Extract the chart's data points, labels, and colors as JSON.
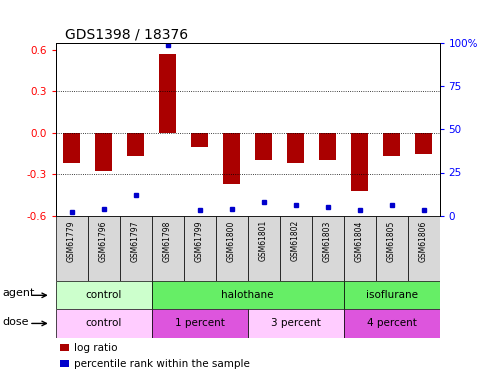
{
  "title": "GDS1398 / 18376",
  "samples": [
    "GSM61779",
    "GSM61796",
    "GSM61797",
    "GSM61798",
    "GSM61799",
    "GSM61800",
    "GSM61801",
    "GSM61802",
    "GSM61803",
    "GSM61804",
    "GSM61805",
    "GSM61806"
  ],
  "log_ratios": [
    -0.22,
    -0.28,
    -0.17,
    0.57,
    -0.1,
    -0.37,
    -0.2,
    -0.22,
    -0.2,
    -0.42,
    -0.17,
    -0.15
  ],
  "percentile_ranks": [
    2,
    4,
    12,
    99,
    3,
    4,
    8,
    6,
    5,
    3,
    6,
    3
  ],
  "bar_color": "#aa0000",
  "dot_color": "#0000cc",
  "agent_groups": [
    {
      "label": "control",
      "start": 0,
      "end": 3,
      "color": "#ccffcc"
    },
    {
      "label": "halothane",
      "start": 3,
      "end": 9,
      "color": "#66ee66"
    },
    {
      "label": "isoflurane",
      "start": 9,
      "end": 12,
      "color": "#66ee66"
    }
  ],
  "dose_groups": [
    {
      "label": "control",
      "start": 0,
      "end": 3,
      "color": "#ffccff"
    },
    {
      "label": "1 percent",
      "start": 3,
      "end": 6,
      "color": "#dd55dd"
    },
    {
      "label": "3 percent",
      "start": 6,
      "end": 9,
      "color": "#ffccff"
    },
    {
      "label": "4 percent",
      "start": 9,
      "end": 12,
      "color": "#dd55dd"
    }
  ],
  "ylim": [
    -0.6,
    0.65
  ],
  "yticks_left": [
    -0.6,
    -0.3,
    0.0,
    0.3,
    0.6
  ],
  "yticks_right": [
    0,
    25,
    50,
    75,
    100
  ],
  "dotted_lines": [
    -0.3,
    0.0,
    0.3
  ],
  "legend_log_ratio": "log ratio",
  "legend_percentile": "percentile rank within the sample",
  "background_color": "#ffffff"
}
